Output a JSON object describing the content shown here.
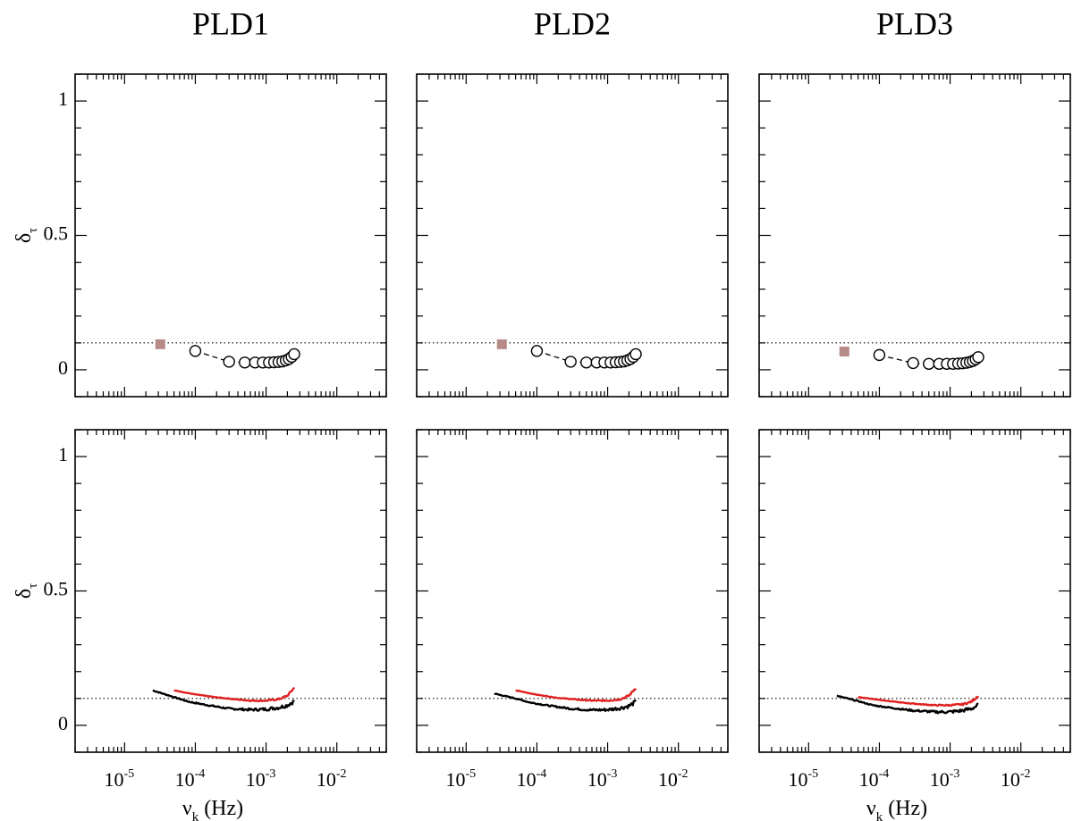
{
  "chart_data": [
    {
      "type": "scatter",
      "panel": "top-left",
      "title": "PLD1",
      "xlabel": "",
      "ylabel": "δτ",
      "xscale": "log",
      "xlim": [
        2e-06,
        0.05
      ],
      "ylim": [
        -0.1,
        1.1
      ],
      "yticks": [
        {
          "v": 0,
          "label": "0"
        },
        {
          "v": 0.5,
          "label": "0.5"
        },
        {
          "v": 1,
          "label": "1"
        }
      ],
      "xticks": [],
      "reference_line": 0.1,
      "series": [
        {
          "marker": "square",
          "color": "#b58a87",
          "connect": false,
          "x": [
            3.2e-05
          ],
          "y": [
            0.095
          ]
        },
        {
          "marker": "open-circle",
          "color": "#000000",
          "connect": "dashed",
          "x": [
            0.0001,
            0.0003,
            0.0005,
            0.0007,
            0.0009,
            0.0011,
            0.0013,
            0.0015,
            0.0017,
            0.0019,
            0.0021,
            0.0023,
            0.0025
          ],
          "y": [
            0.07,
            0.03,
            0.027,
            0.027,
            0.027,
            0.027,
            0.028,
            0.029,
            0.031,
            0.035,
            0.04,
            0.048,
            0.058
          ]
        }
      ]
    },
    {
      "type": "scatter",
      "panel": "top-middle",
      "title": "PLD2",
      "xlabel": "",
      "ylabel": "",
      "xscale": "log",
      "xlim": [
        2e-06,
        0.05
      ],
      "ylim": [
        -0.1,
        1.1
      ],
      "yticks": [],
      "xticks": [],
      "reference_line": 0.1,
      "series": [
        {
          "marker": "square",
          "color": "#b58a87",
          "connect": false,
          "x": [
            3.2e-05
          ],
          "y": [
            0.095
          ]
        },
        {
          "marker": "open-circle",
          "color": "#000000",
          "connect": "dashed",
          "x": [
            0.0001,
            0.0003,
            0.0005,
            0.0007,
            0.0009,
            0.0011,
            0.0013,
            0.0015,
            0.0017,
            0.0019,
            0.0021,
            0.0023,
            0.0025
          ],
          "y": [
            0.07,
            0.03,
            0.027,
            0.027,
            0.027,
            0.027,
            0.028,
            0.029,
            0.031,
            0.035,
            0.04,
            0.048,
            0.058
          ]
        }
      ]
    },
    {
      "type": "scatter",
      "panel": "top-right",
      "title": "PLD3",
      "xlabel": "",
      "ylabel": "",
      "xscale": "log",
      "xlim": [
        2e-06,
        0.05
      ],
      "ylim": [
        -0.1,
        1.1
      ],
      "yticks": [],
      "xticks": [],
      "reference_line": 0.1,
      "series": [
        {
          "marker": "square",
          "color": "#b58a87",
          "connect": false,
          "x": [
            3.2e-05
          ],
          "y": [
            0.068
          ]
        },
        {
          "marker": "open-circle",
          "color": "#000000",
          "connect": "dashed",
          "x": [
            0.0001,
            0.0003,
            0.0005,
            0.0007,
            0.0009,
            0.0011,
            0.0013,
            0.0015,
            0.0017,
            0.0019,
            0.0021,
            0.0023,
            0.0025
          ],
          "y": [
            0.055,
            0.025,
            0.022,
            0.022,
            0.022,
            0.022,
            0.023,
            0.024,
            0.026,
            0.029,
            0.033,
            0.039,
            0.047
          ]
        }
      ]
    },
    {
      "type": "line",
      "panel": "bottom-left",
      "title": "",
      "xlabel": "νk (Hz)",
      "ylabel": "δτ",
      "xscale": "log",
      "xlim": [
        2e-06,
        0.05
      ],
      "ylim": [
        -0.1,
        1.1
      ],
      "yticks": [
        {
          "v": 0,
          "label": "0"
        },
        {
          "v": 0.5,
          "label": "0.5"
        },
        {
          "v": 1,
          "label": "1"
        }
      ],
      "xticks": [
        {
          "v": 1e-05,
          "base": "10",
          "exp": "-5"
        },
        {
          "v": 0.0001,
          "base": "10",
          "exp": "-4"
        },
        {
          "v": 0.001,
          "base": "10",
          "exp": "-3"
        },
        {
          "v": 0.01,
          "base": "10",
          "exp": "-2"
        }
      ],
      "reference_line": 0.1,
      "series": [
        {
          "color": "#000000",
          "noise": 0.008,
          "x": [
            2.5e-05,
            5e-05,
            8e-05,
            0.00015,
            0.0003,
            0.0006,
            0.001,
            0.0015,
            0.002,
            0.0025
          ],
          "y": [
            0.13,
            0.105,
            0.088,
            0.075,
            0.062,
            0.058,
            0.06,
            0.066,
            0.075,
            0.09
          ]
        },
        {
          "color": "#e02020",
          "noise": 0.004,
          "x": [
            5e-05,
            0.0001,
            0.0002,
            0.0004,
            0.0006,
            0.001,
            0.0015,
            0.002,
            0.0025
          ],
          "y": [
            0.13,
            0.115,
            0.104,
            0.096,
            0.092,
            0.092,
            0.097,
            0.11,
            0.14
          ]
        }
      ]
    },
    {
      "type": "line",
      "panel": "bottom-middle",
      "title": "",
      "xlabel": "",
      "ylabel": "",
      "xscale": "log",
      "xlim": [
        2e-06,
        0.05
      ],
      "ylim": [
        -0.1,
        1.1
      ],
      "yticks": [],
      "xticks": [
        {
          "v": 1e-05,
          "base": "10",
          "exp": "-5"
        },
        {
          "v": 0.0001,
          "base": "10",
          "exp": "-4"
        },
        {
          "v": 0.001,
          "base": "10",
          "exp": "-3"
        },
        {
          "v": 0.01,
          "base": "10",
          "exp": "-2"
        }
      ],
      "reference_line": 0.1,
      "series": [
        {
          "color": "#000000",
          "noise": 0.008,
          "x": [
            2.5e-05,
            5e-05,
            8e-05,
            0.00015,
            0.0003,
            0.0006,
            0.001,
            0.0015,
            0.002,
            0.0025
          ],
          "y": [
            0.118,
            0.1,
            0.085,
            0.073,
            0.062,
            0.057,
            0.058,
            0.064,
            0.072,
            0.088
          ]
        },
        {
          "color": "#e02020",
          "noise": 0.004,
          "x": [
            5e-05,
            0.0001,
            0.0002,
            0.0004,
            0.0006,
            0.001,
            0.0015,
            0.002,
            0.0025
          ],
          "y": [
            0.13,
            0.114,
            0.102,
            0.095,
            0.092,
            0.092,
            0.097,
            0.11,
            0.14
          ]
        }
      ]
    },
    {
      "type": "line",
      "panel": "bottom-right",
      "title": "",
      "xlabel": "νk (Hz)",
      "ylabel": "",
      "xscale": "log",
      "xlim": [
        2e-06,
        0.05
      ],
      "ylim": [
        -0.1,
        1.1
      ],
      "yticks": [],
      "xticks": [
        {
          "v": 1e-05,
          "base": "10",
          "exp": "-5"
        },
        {
          "v": 0.0001,
          "base": "10",
          "exp": "-4"
        },
        {
          "v": 0.001,
          "base": "10",
          "exp": "-3"
        },
        {
          "v": 0.01,
          "base": "10",
          "exp": "-2"
        }
      ],
      "reference_line": 0.1,
      "series": [
        {
          "color": "#000000",
          "noise": 0.008,
          "x": [
            2.5e-05,
            5e-05,
            8e-05,
            0.00015,
            0.0003,
            0.0006,
            0.001,
            0.0015,
            0.002,
            0.0025
          ],
          "y": [
            0.11,
            0.09,
            0.075,
            0.065,
            0.055,
            0.05,
            0.05,
            0.055,
            0.062,
            0.075
          ]
        },
        {
          "color": "#e02020",
          "noise": 0.004,
          "x": [
            5e-05,
            0.0001,
            0.0002,
            0.0004,
            0.0006,
            0.001,
            0.0015,
            0.002,
            0.0025
          ],
          "y": [
            0.105,
            0.095,
            0.085,
            0.078,
            0.075,
            0.075,
            0.078,
            0.088,
            0.11
          ]
        }
      ]
    }
  ]
}
